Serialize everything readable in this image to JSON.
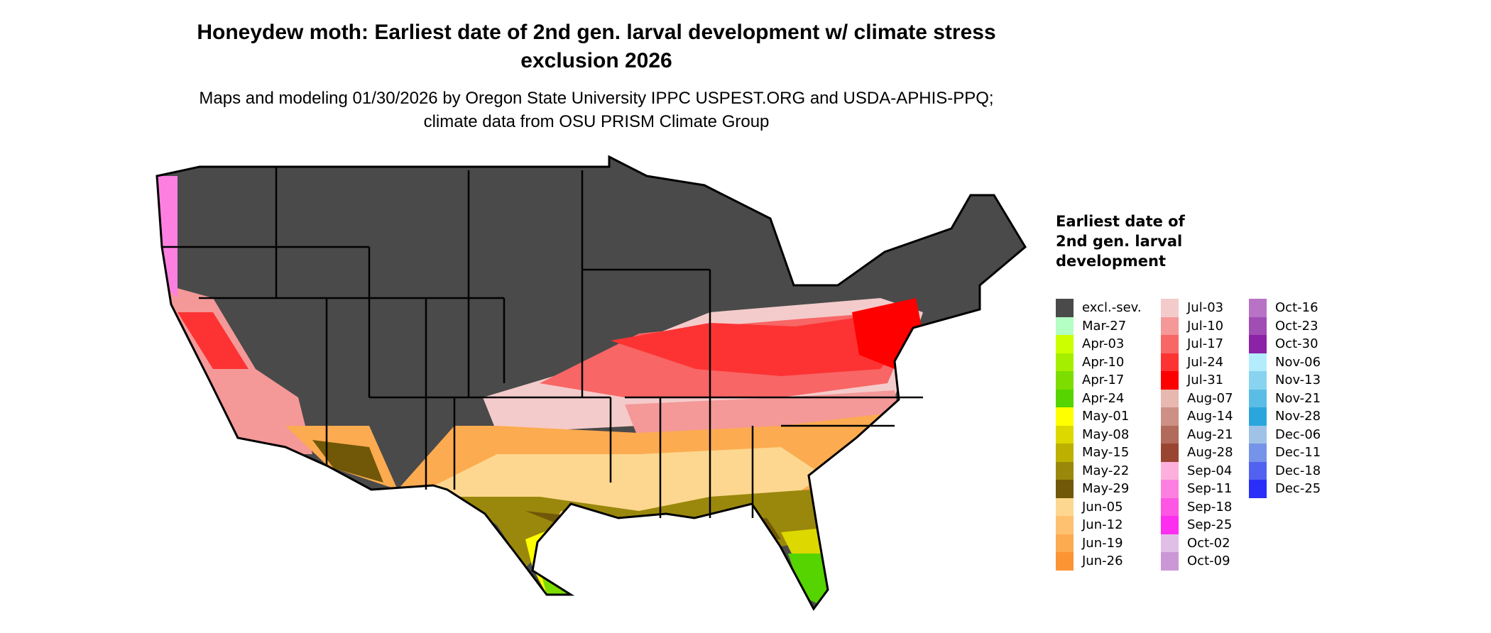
{
  "title": "Honeydew moth: Earliest date of 2nd gen. larval development w/ climate stress exclusion 2026",
  "subtitle": "Maps and modeling 01/30/2026 by Oregon State University IPPC USPEST.ORG and USDA-APHIS-PPQ; climate data from OSU PRISM Climate Group",
  "legend": {
    "title": "Earliest date of 2nd gen. larval development",
    "items": [
      {
        "label": "excl.-sev.",
        "color": "#4a4a4a"
      },
      {
        "label": "Mar-27",
        "color": "#b3ffc4"
      },
      {
        "label": "Apr-03",
        "color": "#ccff00"
      },
      {
        "label": "Apr-10",
        "color": "#a6ee00"
      },
      {
        "label": "Apr-17",
        "color": "#7ddd00"
      },
      {
        "label": "Apr-24",
        "color": "#55d400"
      },
      {
        "label": "May-01",
        "color": "#ffff00"
      },
      {
        "label": "May-08",
        "color": "#dcd800"
      },
      {
        "label": "May-15",
        "color": "#bdb000"
      },
      {
        "label": "May-22",
        "color": "#9a880c"
      },
      {
        "label": "May-29",
        "color": "#705808"
      },
      {
        "label": "Jun-05",
        "color": "#fdd78f"
      },
      {
        "label": "Jun-12",
        "color": "#fdc170"
      },
      {
        "label": "Jun-19",
        "color": "#fcab50"
      },
      {
        "label": "Jun-26",
        "color": "#fc9435"
      },
      {
        "label": "Jul-03",
        "color": "#f4cbcb"
      },
      {
        "label": "Jul-10",
        "color": "#f49898"
      },
      {
        "label": "Jul-17",
        "color": "#f86666"
      },
      {
        "label": "Jul-24",
        "color": "#fd3333"
      },
      {
        "label": "Jul-31",
        "color": "#ff0000"
      },
      {
        "label": "Aug-07",
        "color": "#e6b8b0"
      },
      {
        "label": "Aug-14",
        "color": "#cc9084"
      },
      {
        "label": "Aug-21",
        "color": "#b26a5a"
      },
      {
        "label": "Aug-28",
        "color": "#9a4532"
      },
      {
        "label": "Sep-04",
        "color": "#fdb0dc"
      },
      {
        "label": "Sep-11",
        "color": "#fd80e0"
      },
      {
        "label": "Sep-18",
        "color": "#fd55e4"
      },
      {
        "label": "Sep-25",
        "color": "#fd2ef0"
      },
      {
        "label": "Oct-02",
        "color": "#e0bfe6"
      },
      {
        "label": "Oct-09",
        "color": "#cb97d6"
      },
      {
        "label": "Oct-16",
        "color": "#b873c6"
      },
      {
        "label": "Oct-23",
        "color": "#a04db4"
      },
      {
        "label": "Oct-30",
        "color": "#8c22a6"
      },
      {
        "label": "Nov-06",
        "color": "#b3ecfd"
      },
      {
        "label": "Nov-13",
        "color": "#88d4f0"
      },
      {
        "label": "Nov-21",
        "color": "#5abde6"
      },
      {
        "label": "Nov-28",
        "color": "#2ba6dc"
      },
      {
        "label": "Dec-06",
        "color": "#a0c2e6"
      },
      {
        "label": "Dec-11",
        "color": "#7693ea"
      },
      {
        "label": "Dec-18",
        "color": "#5262f0"
      },
      {
        "label": "Dec-25",
        "color": "#2a2ef8"
      }
    ]
  }
}
